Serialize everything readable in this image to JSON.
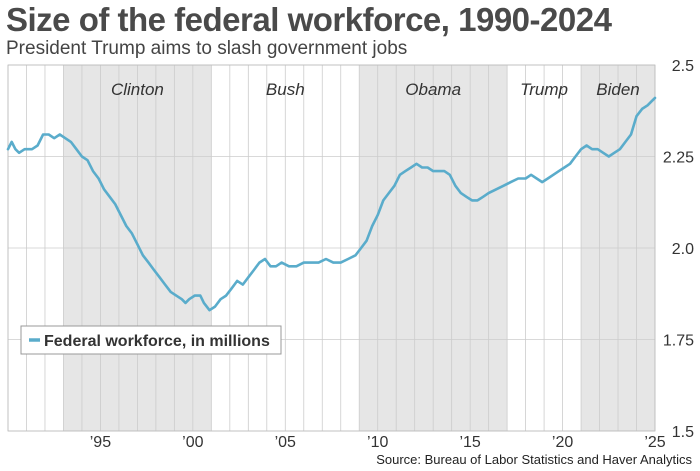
{
  "header": {
    "title": "Size of the federal workforce, 1990-2024",
    "subtitle": "President Trump aims to slash government jobs"
  },
  "footer": {
    "source": "Source: Bureau of Labor Statistics and Haver Analytics"
  },
  "colors": {
    "line": "#5aaccb",
    "shade": "#e6e6e6",
    "grid": "#cccccc"
  },
  "chart_data": {
    "type": "line",
    "title": "Size of the federal workforce, 1990-2024",
    "xlabel": "",
    "ylabel": "",
    "xlim": [
      1990.0,
      2025.0
    ],
    "ylim": [
      1.5,
      2.5
    ],
    "y_axis_side": "right",
    "y_ticks": [
      {
        "value": 2.5,
        "label": "2.5"
      },
      {
        "value": 2.25,
        "label": "2.25"
      },
      {
        "value": 2.0,
        "label": "2.0"
      },
      {
        "value": 1.75,
        "label": "1.75"
      },
      {
        "value": 1.5,
        "label": "1.5"
      }
    ],
    "x_ticks": [
      {
        "value": 1995,
        "label": "’95"
      },
      {
        "value": 2000,
        "label": "’00"
      },
      {
        "value": 2005,
        "label": "’05"
      },
      {
        "value": 2010,
        "label": "’10"
      },
      {
        "value": 2015,
        "label": "’15"
      },
      {
        "value": 2020,
        "label": "’20"
      },
      {
        "value": 2025,
        "label": "’25"
      }
    ],
    "grid": true,
    "legend_position": "bottom-left",
    "presidencies": [
      {
        "name": "Clinton",
        "start": 1993.0,
        "end": 2001.0,
        "shaded": true
      },
      {
        "name": "Bush",
        "start": 2001.0,
        "end": 2009.0,
        "shaded": false
      },
      {
        "name": "Obama",
        "start": 2009.0,
        "end": 2017.0,
        "shaded": true
      },
      {
        "name": "Trump",
        "start": 2017.0,
        "end": 2021.0,
        "shaded": false
      },
      {
        "name": "Biden",
        "start": 2021.0,
        "end": 2025.0,
        "shaded": true
      }
    ],
    "series": [
      {
        "name": "Federal workforce, in millions",
        "points": [
          [
            1990.0,
            2.27
          ],
          [
            1990.2,
            2.29
          ],
          [
            1990.4,
            2.27
          ],
          [
            1990.6,
            2.26
          ],
          [
            1990.9,
            2.27
          ],
          [
            1991.3,
            2.27
          ],
          [
            1991.6,
            2.28
          ],
          [
            1991.9,
            2.31
          ],
          [
            1992.2,
            2.31
          ],
          [
            1992.5,
            2.3
          ],
          [
            1992.8,
            2.31
          ],
          [
            1993.1,
            2.3
          ],
          [
            1993.4,
            2.29
          ],
          [
            1993.7,
            2.27
          ],
          [
            1994.0,
            2.25
          ],
          [
            1994.3,
            2.24
          ],
          [
            1994.6,
            2.21
          ],
          [
            1994.9,
            2.19
          ],
          [
            1995.2,
            2.16
          ],
          [
            1995.5,
            2.14
          ],
          [
            1995.8,
            2.12
          ],
          [
            1996.1,
            2.09
          ],
          [
            1996.4,
            2.06
          ],
          [
            1996.7,
            2.04
          ],
          [
            1997.0,
            2.01
          ],
          [
            1997.3,
            1.98
          ],
          [
            1997.6,
            1.96
          ],
          [
            1997.9,
            1.94
          ],
          [
            1998.2,
            1.92
          ],
          [
            1998.5,
            1.9
          ],
          [
            1998.8,
            1.88
          ],
          [
            1999.1,
            1.87
          ],
          [
            1999.4,
            1.86
          ],
          [
            1999.6,
            1.85
          ],
          [
            1999.8,
            1.86
          ],
          [
            2000.1,
            1.87
          ],
          [
            2000.4,
            1.87
          ],
          [
            2000.6,
            1.85
          ],
          [
            2000.9,
            1.83
          ],
          [
            2001.2,
            1.84
          ],
          [
            2001.5,
            1.86
          ],
          [
            2001.8,
            1.87
          ],
          [
            2002.1,
            1.89
          ],
          [
            2002.4,
            1.91
          ],
          [
            2002.7,
            1.9
          ],
          [
            2003.0,
            1.92
          ],
          [
            2003.3,
            1.94
          ],
          [
            2003.6,
            1.96
          ],
          [
            2003.9,
            1.97
          ],
          [
            2004.2,
            1.95
          ],
          [
            2004.5,
            1.95
          ],
          [
            2004.8,
            1.96
          ],
          [
            2005.2,
            1.95
          ],
          [
            2005.6,
            1.95
          ],
          [
            2006.0,
            1.96
          ],
          [
            2006.4,
            1.96
          ],
          [
            2006.8,
            1.96
          ],
          [
            2007.2,
            1.97
          ],
          [
            2007.6,
            1.96
          ],
          [
            2008.0,
            1.96
          ],
          [
            2008.4,
            1.97
          ],
          [
            2008.8,
            1.98
          ],
          [
            2009.1,
            2.0
          ],
          [
            2009.4,
            2.02
          ],
          [
            2009.7,
            2.06
          ],
          [
            2010.0,
            2.09
          ],
          [
            2010.3,
            2.13
          ],
          [
            2010.6,
            2.15
          ],
          [
            2010.9,
            2.17
          ],
          [
            2011.2,
            2.2
          ],
          [
            2011.5,
            2.21
          ],
          [
            2011.8,
            2.22
          ],
          [
            2012.1,
            2.23
          ],
          [
            2012.4,
            2.22
          ],
          [
            2012.7,
            2.22
          ],
          [
            2013.0,
            2.21
          ],
          [
            2013.3,
            2.21
          ],
          [
            2013.6,
            2.21
          ],
          [
            2013.9,
            2.2
          ],
          [
            2014.2,
            2.17
          ],
          [
            2014.5,
            2.15
          ],
          [
            2014.8,
            2.14
          ],
          [
            2015.1,
            2.13
          ],
          [
            2015.4,
            2.13
          ],
          [
            2015.7,
            2.14
          ],
          [
            2016.0,
            2.15
          ],
          [
            2016.4,
            2.16
          ],
          [
            2016.8,
            2.17
          ],
          [
            2017.2,
            2.18
          ],
          [
            2017.6,
            2.19
          ],
          [
            2018.0,
            2.19
          ],
          [
            2018.3,
            2.2
          ],
          [
            2018.6,
            2.19
          ],
          [
            2018.9,
            2.18
          ],
          [
            2019.2,
            2.19
          ],
          [
            2019.5,
            2.2
          ],
          [
            2019.8,
            2.21
          ],
          [
            2020.1,
            2.22
          ],
          [
            2020.4,
            2.23
          ],
          [
            2020.7,
            2.25
          ],
          [
            2021.0,
            2.27
          ],
          [
            2021.3,
            2.28
          ],
          [
            2021.6,
            2.27
          ],
          [
            2021.9,
            2.27
          ],
          [
            2022.2,
            2.26
          ],
          [
            2022.5,
            2.25
          ],
          [
            2022.8,
            2.26
          ],
          [
            2023.1,
            2.27
          ],
          [
            2023.4,
            2.29
          ],
          [
            2023.7,
            2.31
          ],
          [
            2024.0,
            2.36
          ],
          [
            2024.3,
            2.38
          ],
          [
            2024.6,
            2.39
          ],
          [
            2024.8,
            2.4
          ],
          [
            2025.0,
            2.41
          ]
        ]
      }
    ]
  }
}
